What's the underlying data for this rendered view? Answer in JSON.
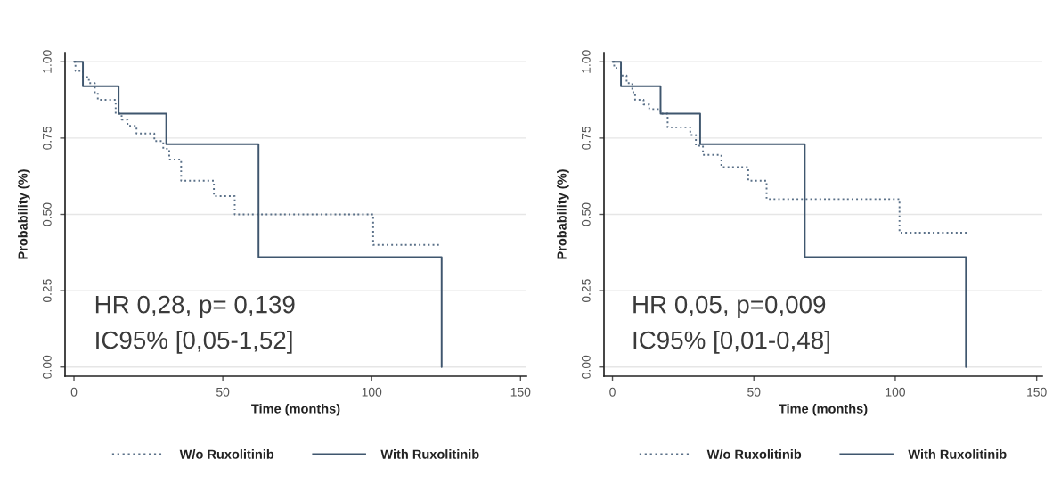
{
  "chart_data": [
    {
      "type": "step",
      "xlabel": "Time (months)",
      "ylabel": "Probability (%)",
      "series": [
        {
          "name": "W/o Ruxolitinib",
          "color": "#5a7088",
          "line_style": "dotted",
          "x": [
            0,
            0.5,
            3,
            5,
            7,
            8,
            14,
            16,
            18,
            21,
            27,
            30,
            32,
            36,
            47,
            54,
            100.5,
            123.5
          ],
          "values": [
            1.0,
            0.97,
            0.95,
            0.93,
            0.9,
            0.875,
            0.83,
            0.81,
            0.79,
            0.765,
            0.74,
            0.715,
            0.68,
            0.61,
            0.56,
            0.5,
            0.4,
            0.4
          ]
        },
        {
          "name": "With Ruxolitinib",
          "color": "#3f566e",
          "line_style": "solid",
          "x": [
            0,
            3,
            15,
            31,
            62,
            123.5
          ],
          "values": [
            1.0,
            0.92,
            0.83,
            0.73,
            0.36,
            0
          ]
        }
      ],
      "xlim": [
        -3,
        152
      ],
      "ylim": [
        -0.03,
        1.03
      ],
      "xticks": [
        0,
        50,
        100,
        150
      ],
      "yticks": [
        {
          "value": 0,
          "label": "0.00"
        },
        {
          "value": 0.25,
          "label": "0.25"
        },
        {
          "value": 0.5,
          "label": "0.50"
        },
        {
          "value": 0.75,
          "label": "0.75"
        },
        {
          "value": 1,
          "label": "1.00"
        }
      ],
      "grid": "y",
      "legend": "bottom",
      "annotations": [
        "HR 0,28, p= 0,139",
        "IC95% [0,05-1,52]"
      ]
    },
    {
      "type": "step",
      "xlabel": "Time (months)",
      "ylabel": "Probability (%)",
      "series": [
        {
          "name": "W/o Ruxolitinib",
          "color": "#5a7088",
          "line_style": "dotted",
          "x": [
            0,
            0.6,
            3,
            5,
            7,
            8,
            11,
            13,
            17,
            19.5,
            27.5,
            29.5,
            32,
            38.5,
            48,
            54.5,
            101.5,
            125.5
          ],
          "values": [
            1.0,
            0.98,
            0.955,
            0.93,
            0.9,
            0.875,
            0.86,
            0.845,
            0.83,
            0.785,
            0.76,
            0.725,
            0.695,
            0.655,
            0.61,
            0.55,
            0.44,
            0.44
          ]
        },
        {
          "name": "With Ruxolitinib",
          "color": "#3f566e",
          "line_style": "solid",
          "x": [
            0,
            3,
            17,
            31,
            68,
            125
          ],
          "values": [
            1.0,
            0.92,
            0.83,
            0.73,
            0.36,
            0
          ]
        }
      ],
      "xlim": [
        -3,
        152
      ],
      "ylim": [
        -0.03,
        1.03
      ],
      "xticks": [
        0,
        50,
        100,
        150
      ],
      "yticks": [
        {
          "value": 0,
          "label": "0.00"
        },
        {
          "value": 0.25,
          "label": "0.25"
        },
        {
          "value": 0.5,
          "label": "0.50"
        },
        {
          "value": 0.75,
          "label": "0.75"
        },
        {
          "value": 1,
          "label": "1.00"
        }
      ],
      "grid": "y",
      "legend": "bottom",
      "annotations": [
        "HR 0,05, p=0,009",
        "IC95% [0,01-0,48]"
      ]
    }
  ]
}
